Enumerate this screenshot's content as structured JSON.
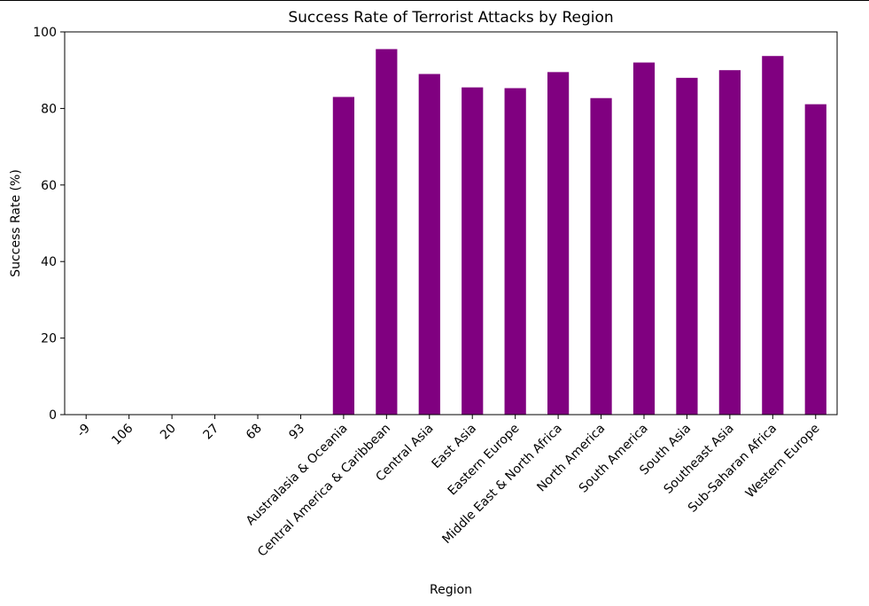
{
  "chart_data": {
    "type": "bar",
    "title": "Success Rate of Terrorist Attacks by Region",
    "xlabel": "Region",
    "ylabel": "Success Rate (%)",
    "ylim": [
      0,
      100
    ],
    "yticks": [
      "0",
      "20",
      "40",
      "60",
      "80",
      "100"
    ],
    "grid": false,
    "bar_color": "#800080",
    "categories": [
      "-9",
      "106",
      "20",
      "27",
      "68",
      "93",
      "Australasia & Oceania",
      "Central America & Caribbean",
      "Central Asia",
      "East Asia",
      "Eastern Europe",
      "Middle East & North Africa",
      "North America",
      "South America",
      "South Asia",
      "Southeast Asia",
      "Sub-Saharan Africa",
      "Western Europe"
    ],
    "values": [
      0,
      0,
      0,
      0,
      0,
      0,
      83.0,
      95.5,
      89.0,
      85.5,
      85.3,
      89.5,
      82.7,
      92.0,
      88.0,
      90.0,
      93.7,
      81.1
    ]
  }
}
